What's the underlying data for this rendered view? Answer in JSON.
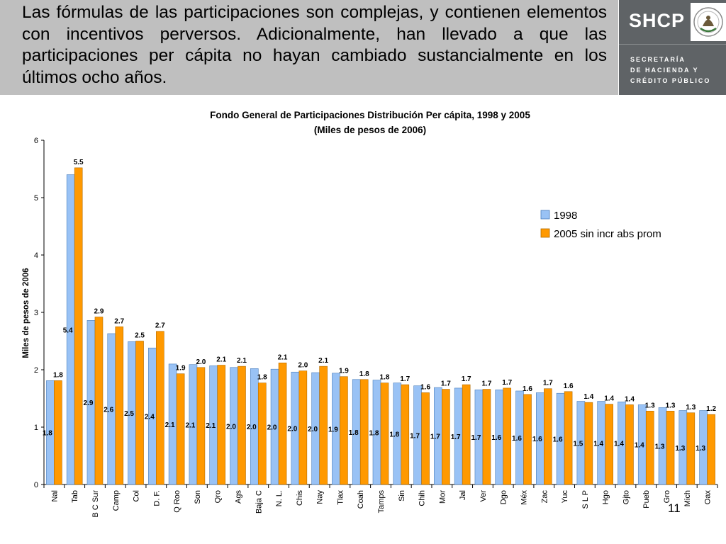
{
  "header": {
    "text": "Las fórmulas de las participaciones son complejas, y contienen elementos con incentivos perversos.  Adicionalmente, han llevado a que las participaciones per cápita no hayan cambiado sustancialmente en los últimos ocho años."
  },
  "logo": {
    "acronym": "SHCP",
    "name_line1": "SECRETARÍA",
    "name_line2": "DE HACIENDA Y",
    "name_line3": "CRÉDITO PÚBLICO"
  },
  "colors": {
    "series_1998": "#99c2f5",
    "series_2005": "#ff9900",
    "header_bg": "#bfbfbf",
    "logo_bg": "#5f6366"
  },
  "slide_number": "11",
  "chart_data": {
    "type": "bar",
    "title": "Fondo General de Participaciones Distribución Per cápita, 1998 y 2005",
    "subtitle": "(Miles de pesos de 2006)",
    "ylabel": "Miles de pesos de 2006",
    "xlabel": "",
    "ylim": [
      0,
      6
    ],
    "yticks": [
      "0",
      "1",
      "2",
      "3",
      "4",
      "5",
      "6"
    ],
    "grid": false,
    "legend_position": "right",
    "categories": [
      "Nal",
      "Tab",
      "B C Sur",
      "Camp",
      "Col",
      "D. F.",
      "Q Roo",
      "Son",
      "Qro",
      "Ags",
      "Baja C",
      "N. L.",
      "Chis",
      "Nay",
      "Tlax",
      "Coah",
      "Tamps",
      "Sin",
      "Chih",
      "Mor",
      "Jal",
      "Ver",
      "Dgo",
      "Méx",
      "Zac",
      "Yuc",
      "S L P",
      "Hgo",
      "Gjto",
      "Pueb",
      "Gro",
      "Mich",
      "Oax"
    ],
    "series": [
      {
        "name": "1998",
        "values": [
          1.81,
          5.4,
          2.86,
          2.63,
          2.49,
          2.38,
          2.1,
          2.09,
          2.07,
          2.04,
          2.02,
          2.01,
          1.96,
          1.95,
          1.94,
          1.83,
          1.82,
          1.77,
          1.72,
          1.69,
          1.68,
          1.65,
          1.65,
          1.63,
          1.6,
          1.59,
          1.45,
          1.45,
          1.44,
          1.39,
          1.34,
          1.29,
          1.29
        ],
        "labels": [
          "1.8",
          "5.4",
          "2.9",
          "2.6",
          "2.5",
          "2.4",
          "2.1",
          "2.1",
          "2.1",
          "2.0",
          "2.0",
          "2.0",
          "2.0",
          "2.0",
          "1.9",
          "1.8",
          "1.8",
          "1.8",
          "1.7",
          "1.7",
          "1.7",
          "1.7",
          "1.6",
          "1.6",
          "1.6",
          "1.6",
          "1.5",
          "1.4",
          "1.4",
          "1.4",
          "1.3",
          "1.3",
          "1.3"
        ]
      },
      {
        "name": "2005 sin incr abs prom",
        "values": [
          1.81,
          5.52,
          2.92,
          2.75,
          2.5,
          2.67,
          1.93,
          2.04,
          2.08,
          2.06,
          1.77,
          2.12,
          1.98,
          2.06,
          1.88,
          1.83,
          1.77,
          1.74,
          1.6,
          1.66,
          1.74,
          1.66,
          1.68,
          1.57,
          1.67,
          1.62,
          1.43,
          1.4,
          1.39,
          1.28,
          1.28,
          1.25,
          1.22
        ],
        "labels": [
          "1.8",
          "5.5",
          "2.9",
          "2.7",
          "2.5",
          "2.7",
          "1.9",
          "2.0",
          "2.1",
          "2.1",
          "1.8",
          "2.1",
          "2.0",
          "2.1",
          "1.9",
          "1.8",
          "1.8",
          "1.7",
          "1.6",
          "1.7",
          "1.7",
          "1.7",
          "1.7",
          "1.6",
          "1.7",
          "1.6",
          "1.4",
          "1.4",
          "1.4",
          "1.3",
          "1.3",
          "1.3",
          "1.2"
        ]
      }
    ]
  }
}
